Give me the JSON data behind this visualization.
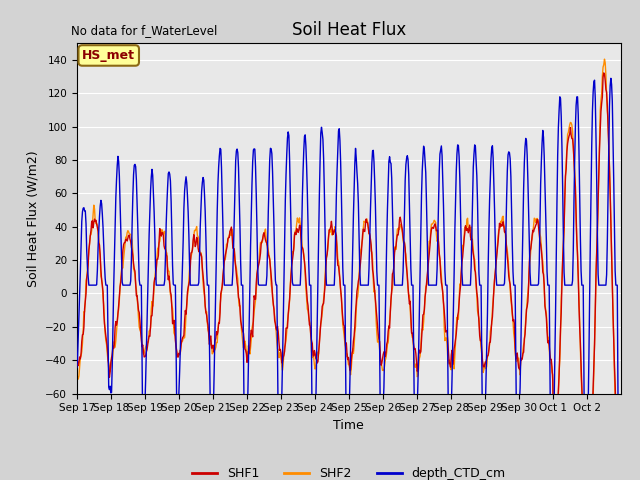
{
  "title": "Soil Heat Flux",
  "xlabel": "Time",
  "ylabel": "Soil Heat Flux (W/m2)",
  "no_data_text": "No data for f_WaterLevel",
  "legend_label_text": "HS_met",
  "ylim": [
    -60,
    150
  ],
  "yticks": [
    -60,
    -40,
    -20,
    0,
    20,
    40,
    60,
    80,
    100,
    120,
    140
  ],
  "bg_color": "#d3d3d3",
  "plot_bg_color": "#e8e8e8",
  "shf1_color": "#cc0000",
  "shf2_color": "#ff8c00",
  "ctd_color": "#0000cc",
  "line_width": 1.0,
  "n_days": 16,
  "samples_per_day": 48,
  "xtick_labels": [
    "Sep 17",
    "Sep 18",
    "Sep 19",
    "Sep 20",
    "Sep 21",
    "Sep 22",
    "Sep 23",
    "Sep 24",
    "Sep 25",
    "Sep 26",
    "Sep 27",
    "Sep 28",
    "Sep 29",
    "Sep 30",
    "Oct 1",
    "Oct 2"
  ]
}
